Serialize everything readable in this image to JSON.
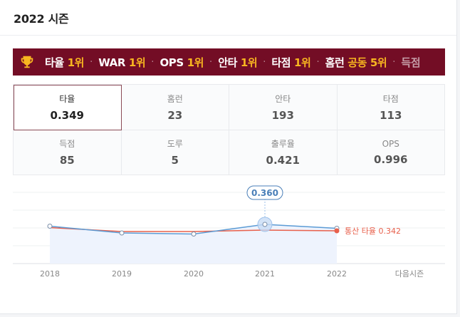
{
  "header": {
    "title": "2022 시즌"
  },
  "banner": {
    "icon": "trophy-icon",
    "awards": [
      {
        "label": "타율",
        "rank": "1위",
        "tie": ""
      },
      {
        "label": "WAR",
        "rank": "1위",
        "tie": ""
      },
      {
        "label": "OPS",
        "rank": "1위",
        "tie": ""
      },
      {
        "label": "안타",
        "rank": "1위",
        "tie": ""
      },
      {
        "label": "타점",
        "rank": "1위",
        "tie": ""
      },
      {
        "label": "홈런",
        "rank": "5위",
        "tie": "공동"
      }
    ],
    "overflow_label": "득점",
    "separator": "·"
  },
  "stats": [
    {
      "label": "타율",
      "value": "0.349",
      "selected": true
    },
    {
      "label": "홈런",
      "value": "23"
    },
    {
      "label": "안타",
      "value": "193"
    },
    {
      "label": "타점",
      "value": "113"
    },
    {
      "label": "득점",
      "value": "85"
    },
    {
      "label": "도루",
      "value": "5"
    },
    {
      "label": "출루율",
      "value": "0.421"
    },
    {
      "label": "OPS",
      "value": "0.996"
    }
  ],
  "chart_data": {
    "type": "line",
    "x": [
      "2018",
      "2019",
      "2020",
      "2021",
      "2022"
    ],
    "extra_x_label": "다음시즌",
    "series": [
      {
        "values": [
          0.355,
          0.336,
          0.333,
          0.36,
          0.349
        ],
        "color": "#5b9bd5",
        "fill": "#eef3fd"
      },
      {
        "name": "통산 타율",
        "values": [
          0.351,
          0.34,
          0.34,
          0.344,
          0.342
        ],
        "color": "#e8604c",
        "label": "통산 타율 0.342"
      }
    ],
    "highlight": {
      "index": 3,
      "label": "0.360"
    },
    "ylim": [
      0.25,
      0.45
    ],
    "grid": true
  }
}
